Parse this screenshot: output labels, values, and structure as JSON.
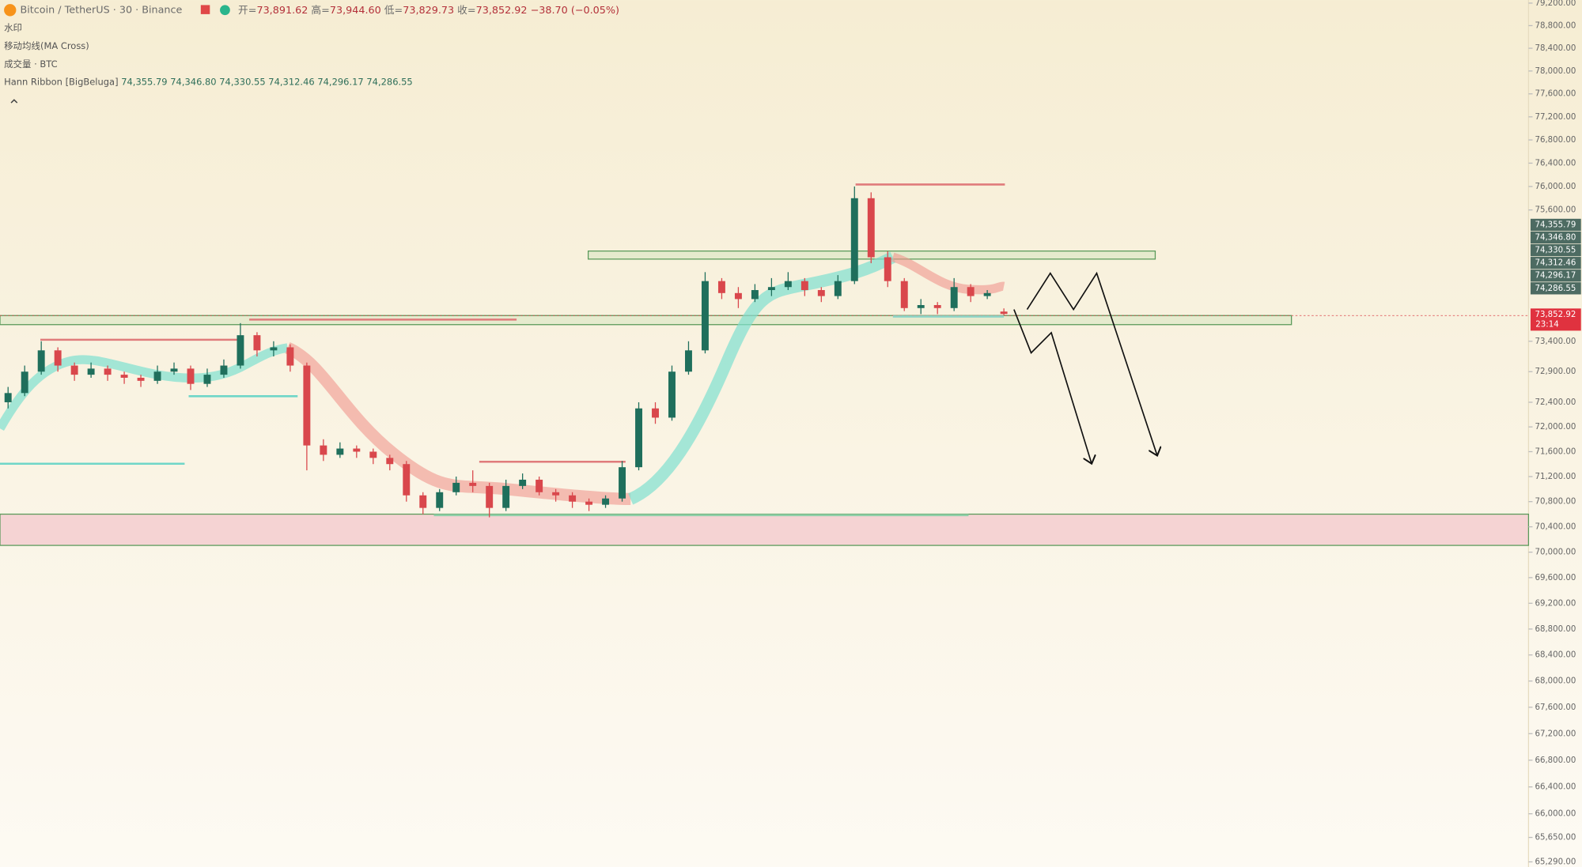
{
  "header": {
    "symbol": "Bitcoin / TetherUS · 30 · Binance",
    "ohlc": [
      {
        "label": "开=",
        "value": "73,891.62"
      },
      {
        "label": "高=",
        "value": "73,944.60"
      },
      {
        "label": "低=",
        "value": "73,829.73"
      },
      {
        "label": "收=",
        "value": "73,852.92"
      }
    ],
    "change": "−38.70 (−0.05%)"
  },
  "indicators": [
    "水印",
    "移动均线(MA Cross)",
    "成交量 · BTC"
  ],
  "ribbon": {
    "name": "Hann Ribbon [BigBeluga]",
    "values": [
      "74,355.79",
      "74,346.80",
      "74,330.55",
      "74,312.46",
      "74,296.17",
      "74,286.55"
    ]
  },
  "price_tags": [
    "74,355.79",
    "74,346.80",
    "74,330.55",
    "74,312.46",
    "74,296.17",
    "74,286.55"
  ],
  "last_price": "73,852.92",
  "countdown": "23:14",
  "chart_data": {
    "type": "candlestick",
    "log_scale": true,
    "ylim": [
      65215,
      79255
    ],
    "up_color": "#1f6f5c",
    "down_color": "#d9474c",
    "yticks": [
      {
        "value": 79200,
        "label": "79,200.00"
      },
      {
        "value": 78800,
        "label": "78,800.00"
      },
      {
        "value": 78400,
        "label": "78,400.00"
      },
      {
        "value": 78000,
        "label": "78,000.00"
      },
      {
        "value": 77600,
        "label": "77,600.00"
      },
      {
        "value": 77200,
        "label": "77,200.00"
      },
      {
        "value": 76800,
        "label": "76,800.00"
      },
      {
        "value": 76400,
        "label": "76,400.00"
      },
      {
        "value": 76000,
        "label": "76,000.00"
      },
      {
        "value": 75600,
        "label": "75,600.00"
      },
      {
        "value": 73400,
        "label": "73,400.00"
      },
      {
        "value": 72900,
        "label": "72,900.00"
      },
      {
        "value": 72400,
        "label": "72,400.00"
      },
      {
        "value": 72000,
        "label": "72,000.00"
      },
      {
        "value": 71600,
        "label": "71,600.00"
      },
      {
        "value": 71200,
        "label": "71,200.00"
      },
      {
        "value": 70800,
        "label": "70,800.00"
      },
      {
        "value": 70400,
        "label": "70,400.00"
      },
      {
        "value": 70000,
        "label": "70,000.00"
      },
      {
        "value": 69600,
        "label": "69,600.00"
      },
      {
        "value": 69200,
        "label": "69,200.00"
      },
      {
        "value": 68800,
        "label": "68,800.00"
      },
      {
        "value": 68400,
        "label": "68,400.00"
      },
      {
        "value": 68000,
        "label": "68,000.00"
      },
      {
        "value": 67600,
        "label": "67,600.00"
      },
      {
        "value": 67200,
        "label": "67,200.00"
      },
      {
        "value": 66800,
        "label": "66,800.00"
      },
      {
        "value": 66400,
        "label": "66,400.00"
      },
      {
        "value": 66000,
        "label": "66,000.00"
      },
      {
        "value": 65650,
        "label": "65,650.00"
      },
      {
        "value": 65290,
        "label": "65,290.00"
      }
    ],
    "open": [
      72400,
      72550,
      72900,
      73250,
      73000,
      72850,
      72950,
      72850,
      72800,
      72750,
      72900,
      72950,
      72700,
      72850,
      73000,
      73500,
      73250,
      73300,
      73000,
      71700,
      71550,
      71650,
      71600,
      71500,
      71400,
      70900,
      70700,
      70950,
      71100,
      71050,
      70700,
      71050,
      71150,
      70950,
      70900,
      70800,
      70750,
      70850,
      71350,
      72300,
      72150,
      72900,
      73250,
      74400,
      74200,
      74100,
      74250,
      74300,
      74400,
      74250,
      74150,
      74400,
      75800,
      74800,
      74400,
      73950,
      74000,
      73950,
      74300,
      74150,
      73891.62
    ],
    "high": [
      72650,
      73000,
      73400,
      73300,
      73050,
      73050,
      73000,
      72900,
      72850,
      73000,
      73050,
      73000,
      72950,
      73100,
      73700,
      73550,
      73400,
      73350,
      73050,
      71800,
      71750,
      71700,
      71650,
      71550,
      71450,
      70950,
      71000,
      71200,
      71300,
      71100,
      71150,
      71250,
      71200,
      71000,
      70950,
      70850,
      70900,
      71450,
      72400,
      72400,
      73000,
      73400,
      74550,
      74450,
      74300,
      74350,
      74450,
      74550,
      74450,
      74300,
      74500,
      76000,
      75900,
      74900,
      74450,
      74100,
      74050,
      74450,
      74350,
      74250,
      73944.6
    ],
    "low": [
      72300,
      72500,
      72850,
      72900,
      72750,
      72800,
      72750,
      72700,
      72650,
      72700,
      72850,
      72600,
      72650,
      72800,
      72950,
      73150,
      73150,
      72900,
      71300,
      71450,
      71500,
      71500,
      71400,
      71300,
      70800,
      70600,
      70650,
      70900,
      70950,
      70550,
      70650,
      71000,
      70900,
      70800,
      70700,
      70650,
      70700,
      70800,
      71300,
      72050,
      72100,
      72850,
      73200,
      74100,
      73950,
      74050,
      74150,
      74250,
      74150,
      74050,
      74100,
      74350,
      74700,
      74300,
      73900,
      73850,
      73850,
      73900,
      74050,
      74100,
      73829.73
    ],
    "close": [
      72550,
      72900,
      73250,
      73000,
      72850,
      72950,
      72850,
      72800,
      72750,
      72900,
      72950,
      72700,
      72850,
      73000,
      73500,
      73250,
      73300,
      73000,
      71700,
      71550,
      71650,
      71600,
      71500,
      71400,
      70900,
      70700,
      70950,
      71100,
      71050,
      70700,
      71050,
      71150,
      70950,
      70900,
      70800,
      70750,
      70850,
      71350,
      72300,
      72150,
      72900,
      73250,
      74400,
      74200,
      74100,
      74250,
      74300,
      74400,
      74250,
      74150,
      74400,
      75800,
      74800,
      74400,
      73950,
      74000,
      73950,
      74300,
      74150,
      74200,
      73852.92
    ]
  }
}
